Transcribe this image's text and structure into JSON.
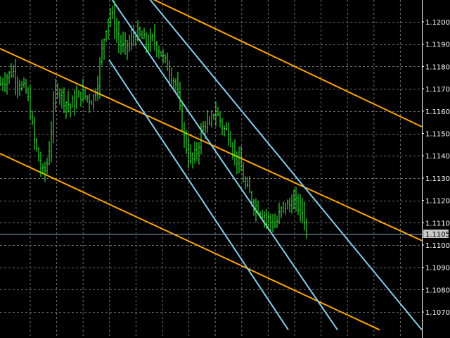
{
  "chart_data": {
    "type": "candlestick",
    "title": "",
    "grid": true,
    "y_range": [
      1.1062,
      1.1212
    ],
    "y_ticks": [
      {
        "value": 1.12,
        "label": "1.1200"
      },
      {
        "value": 1.119,
        "label": "1.1190"
      },
      {
        "value": 1.118,
        "label": "1.1180"
      },
      {
        "value": 1.117,
        "label": "1.1170"
      },
      {
        "value": 1.116,
        "label": "1.1160"
      },
      {
        "value": 1.115,
        "label": "1.1150"
      },
      {
        "value": 1.114,
        "label": "1.1140"
      },
      {
        "value": 1.113,
        "label": "1.1130"
      },
      {
        "value": 1.112,
        "label": "1.1120"
      },
      {
        "value": 1.111,
        "label": "1.1110"
      },
      {
        "value": 1.11,
        "label": "1.1100"
      },
      {
        "value": 1.109,
        "label": "1.1090"
      },
      {
        "value": 1.108,
        "label": "1.1080"
      },
      {
        "value": 1.107,
        "label": "1.1070"
      }
    ],
    "current_price": {
      "value": 1.1105,
      "label": "1.1105"
    },
    "price_path": [
      [
        0,
        1.1172
      ],
      [
        8,
        1.1175
      ],
      [
        18,
        1.1178
      ],
      [
        28,
        1.1172
      ],
      [
        38,
        1.1168
      ],
      [
        43,
        1.116
      ],
      [
        48,
        1.1148
      ],
      [
        55,
        1.1138
      ],
      [
        62,
        1.1131
      ],
      [
        68,
        1.1138
      ],
      [
        74,
        1.1155
      ],
      [
        80,
        1.1172
      ],
      [
        86,
        1.1168
      ],
      [
        92,
        1.1165
      ],
      [
        100,
        1.1162
      ],
      [
        108,
        1.1165
      ],
      [
        116,
        1.1168
      ],
      [
        124,
        1.1166
      ],
      [
        132,
        1.1165
      ],
      [
        138,
        1.1172
      ],
      [
        144,
        1.1185
      ],
      [
        150,
        1.1197
      ],
      [
        156,
        1.1205
      ],
      [
        162,
        1.12
      ],
      [
        168,
        1.1192
      ],
      [
        176,
        1.1188
      ],
      [
        184,
        1.119
      ],
      [
        192,
        1.1195
      ],
      [
        200,
        1.1193
      ],
      [
        210,
        1.119
      ],
      [
        218,
        1.1192
      ],
      [
        226,
        1.1188
      ],
      [
        234,
        1.1182
      ],
      [
        242,
        1.1178
      ],
      [
        250,
        1.1172
      ],
      [
        256,
        1.116
      ],
      [
        262,
        1.1148
      ],
      [
        268,
        1.114
      ],
      [
        274,
        1.1138
      ],
      [
        280,
        1.1142
      ],
      [
        286,
        1.115
      ],
      [
        292,
        1.1155
      ],
      [
        298,
        1.1152
      ],
      [
        304,
        1.116
      ],
      [
        310,
        1.1158
      ],
      [
        318,
        1.1152
      ],
      [
        326,
        1.115
      ],
      [
        332,
        1.1142
      ],
      [
        338,
        1.1138
      ],
      [
        344,
        1.1132
      ],
      [
        350,
        1.1125
      ],
      [
        356,
        1.1122
      ],
      [
        362,
        1.1118
      ],
      [
        370,
        1.1116
      ],
      [
        378,
        1.1113
      ],
      [
        386,
        1.111
      ],
      [
        392,
        1.1109
      ],
      [
        398,
        1.1114
      ],
      [
        404,
        1.1118
      ],
      [
        410,
        1.1117
      ],
      [
        416,
        1.112
      ],
      [
        422,
        1.1118
      ],
      [
        428,
        1.1116
      ],
      [
        432,
        1.1114
      ],
      [
        436,
        1.1106
      ]
    ],
    "price_line": {
      "color": "#33ff33",
      "bar_spacing": 3
    },
    "trend_lines": [
      {
        "color": "#ffa500",
        "from": [
          205,
          1.1212
        ],
        "to": [
          600,
          1.1153
        ]
      },
      {
        "color": "#ffa500",
        "from": [
          0,
          1.1188
        ],
        "to": [
          600,
          1.1102
        ]
      },
      {
        "color": "#ffa500",
        "from": [
          0,
          1.1141
        ],
        "to": [
          540,
          1.1062
        ]
      },
      {
        "color": "#87ceeb",
        "from": [
          155,
          1.1212
        ],
        "to": [
          480,
          1.1062
        ]
      },
      {
        "color": "#87ceeb",
        "from": [
          155,
          1.1183
        ],
        "to": [
          410,
          1.1062
        ]
      },
      {
        "color": "#87ceeb",
        "from": [
          208,
          1.1212
        ],
        "to": [
          600,
          1.1062
        ]
      }
    ],
    "colors": {
      "background": "#000000",
      "grid": "#6e6e6e",
      "axis_text": "#ffffff",
      "current_price_line": "#87aabf",
      "current_price_tag": "#c8c8c8"
    }
  }
}
